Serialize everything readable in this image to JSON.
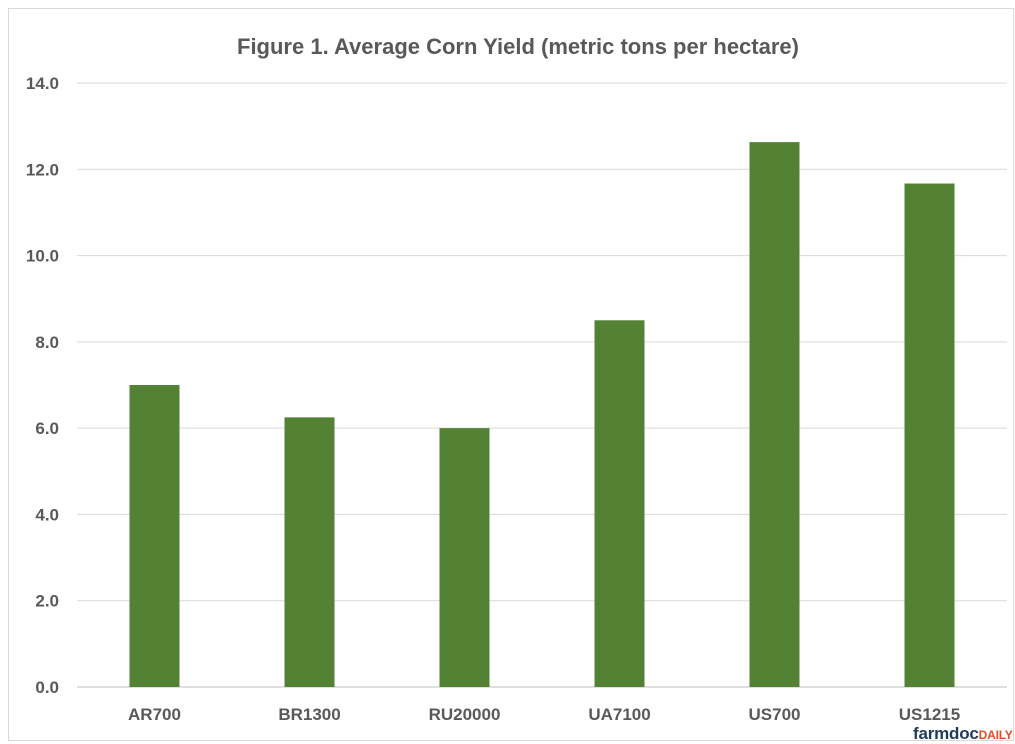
{
  "chart_data": {
    "type": "bar",
    "title": "Figure 1. Average Corn Yield (metric tons per hectare)",
    "categories": [
      "AR700",
      "BR1300",
      "RU20000",
      "UA7100",
      "US700",
      "US1215"
    ],
    "series": [
      {
        "values": [
          7.0,
          6.25,
          6.0,
          8.5,
          12.63,
          11.67
        ]
      }
    ],
    "xlabel": "",
    "ylabel": "",
    "ylim": [
      0,
      14
    ],
    "yticks": [
      "0.0",
      "2.0",
      "4.0",
      "6.0",
      "8.0",
      "10.0",
      "12.0",
      "14.0"
    ],
    "grid": true,
    "legend": "none",
    "bar_color": "#548235"
  },
  "logo": {
    "main": "farmdoc",
    "accent": "DAILY"
  }
}
